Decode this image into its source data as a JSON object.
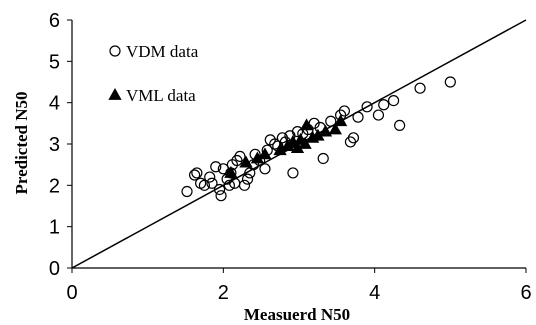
{
  "chart_data": {
    "type": "scatter",
    "xlabel": "Measuerd N50",
    "ylabel": "Predicted N50",
    "xlim": [
      0,
      6
    ],
    "ylim": [
      0,
      6
    ],
    "x_ticks": [
      "0",
      "2",
      "4",
      "6"
    ],
    "y_ticks": [
      "0",
      "1",
      "2",
      "3",
      "4",
      "5",
      "6"
    ],
    "grid": false,
    "legend_position": "top-left",
    "reference_line": {
      "from": [
        0,
        0
      ],
      "to": [
        6,
        6
      ]
    },
    "series": [
      {
        "name": "VDM data",
        "marker": "open-circle",
        "points": [
          [
            1.52,
            1.85
          ],
          [
            1.62,
            2.25
          ],
          [
            1.65,
            2.3
          ],
          [
            1.7,
            2.05
          ],
          [
            1.75,
            2.0
          ],
          [
            1.82,
            2.2
          ],
          [
            1.85,
            2.05
          ],
          [
            1.9,
            2.45
          ],
          [
            1.95,
            1.9
          ],
          [
            1.97,
            1.75
          ],
          [
            2.0,
            2.4
          ],
          [
            2.05,
            2.15
          ],
          [
            2.08,
            2.0
          ],
          [
            2.1,
            2.3
          ],
          [
            2.12,
            2.5
          ],
          [
            2.15,
            2.05
          ],
          [
            2.18,
            2.6
          ],
          [
            2.22,
            2.7
          ],
          [
            2.28,
            2.0
          ],
          [
            2.32,
            2.15
          ],
          [
            2.35,
            2.3
          ],
          [
            2.4,
            2.5
          ],
          [
            2.42,
            2.75
          ],
          [
            2.48,
            2.6
          ],
          [
            2.55,
            2.4
          ],
          [
            2.58,
            2.85
          ],
          [
            2.62,
            3.1
          ],
          [
            2.68,
            3.0
          ],
          [
            2.72,
            2.95
          ],
          [
            2.78,
            3.15
          ],
          [
            2.82,
            3.05
          ],
          [
            2.88,
            3.2
          ],
          [
            2.92,
            2.3
          ],
          [
            2.98,
            3.3
          ],
          [
            3.05,
            3.25
          ],
          [
            3.12,
            3.35
          ],
          [
            3.2,
            3.5
          ],
          [
            3.28,
            3.4
          ],
          [
            3.32,
            2.65
          ],
          [
            3.42,
            3.55
          ],
          [
            3.55,
            3.7
          ],
          [
            3.6,
            3.8
          ],
          [
            3.68,
            3.05
          ],
          [
            3.72,
            3.15
          ],
          [
            3.78,
            3.65
          ],
          [
            3.9,
            3.9
          ],
          [
            4.05,
            3.7
          ],
          [
            4.12,
            3.95
          ],
          [
            4.25,
            4.05
          ],
          [
            4.33,
            3.45
          ],
          [
            4.6,
            4.35
          ],
          [
            5.0,
            4.5
          ]
        ]
      },
      {
        "name": "VML data",
        "marker": "filled-triangle",
        "points": [
          [
            2.1,
            2.3
          ],
          [
            2.3,
            2.55
          ],
          [
            2.45,
            2.65
          ],
          [
            2.55,
            2.75
          ],
          [
            2.75,
            2.85
          ],
          [
            2.85,
            2.95
          ],
          [
            2.92,
            3.05
          ],
          [
            2.98,
            2.9
          ],
          [
            3.02,
            3.1
          ],
          [
            3.08,
            3.0
          ],
          [
            3.1,
            3.45
          ],
          [
            3.18,
            3.15
          ],
          [
            3.25,
            3.2
          ],
          [
            3.35,
            3.3
          ],
          [
            3.48,
            3.35
          ],
          [
            3.55,
            3.55
          ]
        ]
      }
    ]
  }
}
